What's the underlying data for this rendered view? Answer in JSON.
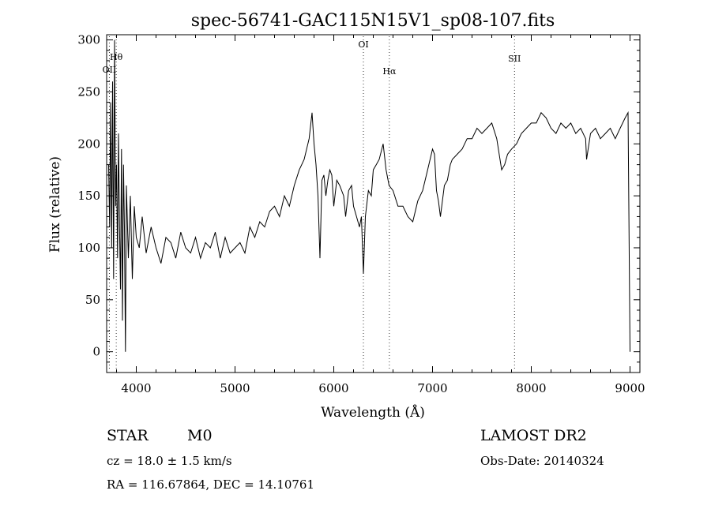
{
  "chart_data": {
    "type": "line",
    "title": "spec-56741-GAC115N15V1_sp08-107.fits",
    "xlabel": "Wavelength (Å)",
    "ylabel": "Flux (relative)",
    "xlim": [
      3700,
      9100
    ],
    "ylim": [
      -20,
      305
    ],
    "x_ticks": [
      4000,
      5000,
      6000,
      7000,
      8000,
      9000
    ],
    "y_ticks": [
      0,
      50,
      100,
      150,
      200,
      250,
      300
    ],
    "grid": false,
    "line_color": "#000000",
    "series": [
      {
        "x": [
          3720,
          3730,
          3740,
          3750,
          3760,
          3770,
          3780,
          3790,
          3800,
          3810,
          3820,
          3830,
          3840,
          3850,
          3860,
          3870,
          3880,
          3890,
          3900,
          3920,
          3940,
          3960,
          3980,
          4000,
          4030,
          4060,
          4100,
          4150,
          4200,
          4250,
          4300,
          4350,
          4400,
          4450,
          4500,
          4550,
          4600,
          4650,
          4700,
          4750,
          4800,
          4850,
          4900,
          4950,
          5000,
          5050,
          5100,
          5150,
          5200,
          5250,
          5300,
          5350,
          5400,
          5450,
          5500,
          5550,
          5600,
          5650,
          5700,
          5750,
          5780,
          5800,
          5820,
          5840,
          5860,
          5880,
          5900,
          5920,
          5940,
          5960,
          5980,
          6000,
          6030,
          6060,
          6100,
          6120,
          6150,
          6180,
          6200,
          6230,
          6260,
          6280,
          6300,
          6320,
          6350,
          6380,
          6400,
          6430,
          6460,
          6500,
          6530,
          6560,
          6600,
          6650,
          6700,
          6750,
          6800,
          6850,
          6900,
          6950,
          7000,
          7020,
          7040,
          7060,
          7080,
          7100,
          7120,
          7150,
          7180,
          7200,
          7250,
          7300,
          7350,
          7400,
          7450,
          7500,
          7550,
          7600,
          7650,
          7700,
          7730,
          7760,
          7800,
          7850,
          7900,
          7950,
          8000,
          8050,
          8100,
          8150,
          8200,
          8250,
          8300,
          8350,
          8400,
          8450,
          8500,
          8550,
          8560,
          8600,
          8650,
          8700,
          8750,
          8800,
          8850,
          8900,
          8950,
          8980,
          9000
        ],
        "y": [
          180,
          120,
          240,
          100,
          260,
          70,
          300,
          140,
          180,
          90,
          210,
          120,
          60,
          195,
          30,
          180,
          120,
          0,
          160,
          90,
          150,
          70,
          140,
          110,
          100,
          130,
          95,
          120,
          100,
          85,
          110,
          105,
          90,
          115,
          100,
          95,
          110,
          90,
          105,
          100,
          115,
          90,
          110,
          95,
          100,
          105,
          95,
          120,
          110,
          125,
          120,
          135,
          140,
          130,
          150,
          140,
          160,
          175,
          185,
          205,
          230,
          200,
          180,
          150,
          90,
          165,
          170,
          150,
          165,
          175,
          170,
          140,
          165,
          160,
          150,
          130,
          155,
          160,
          140,
          130,
          120,
          130,
          75,
          130,
          155,
          150,
          175,
          180,
          185,
          200,
          175,
          160,
          155,
          140,
          140,
          130,
          125,
          145,
          155,
          175,
          195,
          190,
          155,
          145,
          130,
          145,
          160,
          165,
          180,
          185,
          190,
          195,
          205,
          205,
          215,
          210,
          215,
          220,
          205,
          175,
          180,
          190,
          195,
          200,
          210,
          215,
          220,
          220,
          230,
          225,
          215,
          210,
          220,
          215,
          220,
          210,
          215,
          205,
          185,
          210,
          215,
          205,
          210,
          215,
          205,
          215,
          225,
          230,
          0
        ]
      }
    ],
    "annotations": [
      {
        "label": "OII",
        "x": 3727
      },
      {
        "label": "Hθ",
        "x": 3797
      },
      {
        "label": "OI",
        "x": 6300
      },
      {
        "label": "Hα",
        "x": 6563
      },
      {
        "label": "SII",
        "x": 7830
      }
    ]
  },
  "info": {
    "class_label": "STAR",
    "subclass_label": "M0",
    "survey": "LAMOST DR2",
    "cz": "cz = 18.0 ± 1.5 km/s",
    "obs_date": "Obs-Date: 20140324",
    "coords": "RA = 116.67864, DEC =  14.10761"
  }
}
